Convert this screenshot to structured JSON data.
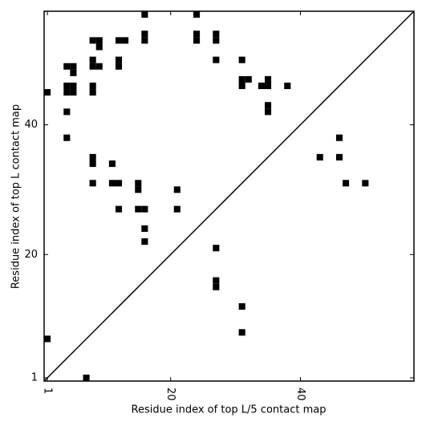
{
  "chart_data": {
    "type": "scatter",
    "x_label": "Residue index of top L/5 contact map",
    "y_label": "Residue index of top L contact map",
    "x": [
      16,
      24,
      16,
      24,
      27,
      16,
      24,
      27,
      8,
      9,
      12,
      13,
      9,
      8,
      12,
      27,
      31,
      4,
      5,
      8,
      9,
      12,
      5,
      31,
      32,
      35,
      4,
      5,
      8,
      31,
      34,
      35,
      38,
      1,
      4,
      5,
      8,
      35,
      35,
      4,
      4,
      46,
      8,
      43,
      46,
      8,
      11,
      8,
      11,
      12,
      15,
      47,
      50,
      15,
      21,
      12,
      15,
      16,
      21,
      16,
      16,
      27,
      27,
      27,
      31,
      31,
      1,
      7
    ],
    "values": [
      57,
      57,
      54,
      54,
      54,
      53,
      53,
      53,
      53,
      53,
      53,
      53,
      52,
      50,
      50,
      50,
      50,
      49,
      49,
      49,
      49,
      49,
      48,
      47,
      47,
      47,
      46,
      46,
      46,
      46,
      46,
      46,
      46,
      45,
      45,
      45,
      45,
      43,
      42,
      42,
      38,
      38,
      35,
      35,
      35,
      34,
      34,
      31,
      31,
      31,
      31,
      31,
      31,
      30,
      30,
      27,
      27,
      27,
      27,
      24,
      22,
      21,
      16,
      15,
      12,
      8,
      7,
      1
    ],
    "color": "#000000",
    "xlim": [
      0.5,
      57.5
    ],
    "ylim": [
      0.5,
      57.5
    ],
    "xticks": [
      1,
      20,
      40
    ],
    "yticks": [
      1,
      20,
      40
    ]
  }
}
